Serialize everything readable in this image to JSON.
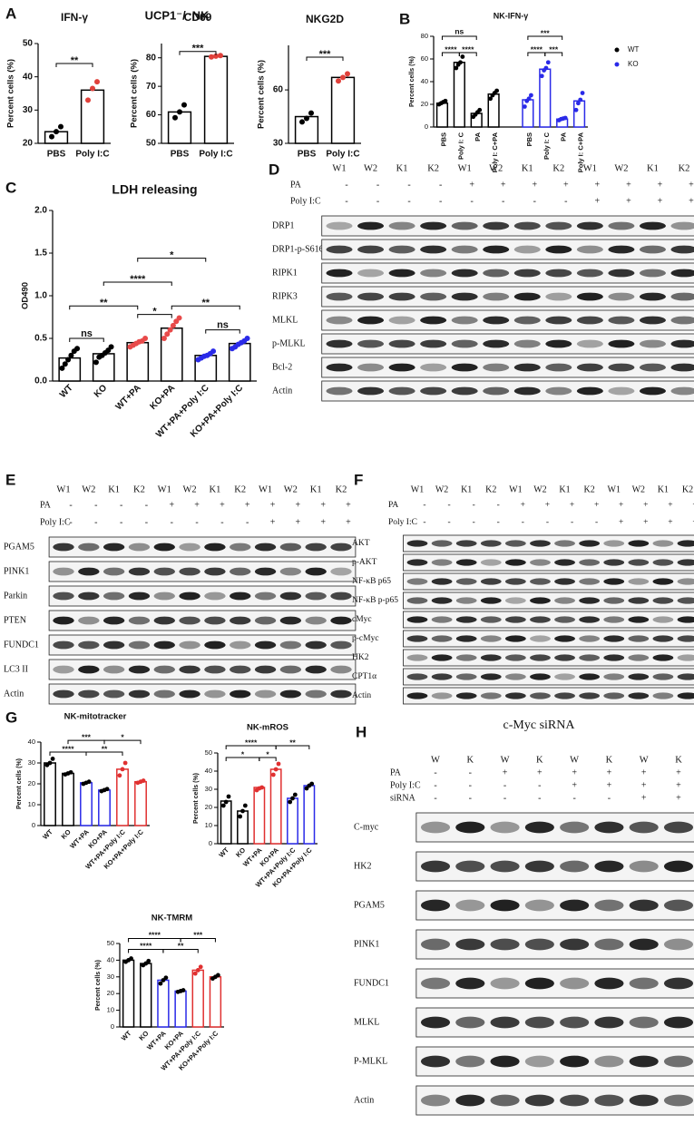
{
  "panels": {
    "labels": [
      "A",
      "B",
      "C",
      "D",
      "E",
      "F",
      "G",
      "H"
    ],
    "A_title": "UCP1⁻/⁻NK"
  },
  "chart_data": [
    {
      "type": "bar",
      "title": "IFN-γ",
      "y_label": "Percent cells (%)",
      "categories": [
        "PBS",
        "Poly I:C"
      ],
      "values": [
        23.5,
        36
      ],
      "points": [
        [
          22,
          23.5,
          25
        ],
        [
          33,
          36.5,
          38.5
        ]
      ],
      "colors": [
        "#000000",
        "#000000"
      ],
      "point_colors": [
        "#000000",
        "#e0403a"
      ],
      "ylim": [
        20,
        50
      ],
      "yticks": [
        20,
        30,
        40,
        50
      ],
      "significance": [
        "**"
      ]
    },
    {
      "type": "bar",
      "title": "CD69",
      "y_label": "Percent cells (%)",
      "categories": [
        "PBS",
        "Poly I:C"
      ],
      "values": [
        61,
        80.5
      ],
      "points": [
        [
          59,
          61,
          63.5
        ],
        [
          80.3,
          80.6,
          80.8
        ]
      ],
      "colors": [
        "#000000",
        "#000000"
      ],
      "point_colors": [
        "#000000",
        "#e0403a"
      ],
      "ylim": [
        50,
        85
      ],
      "yticks": [
        50,
        60,
        70,
        80
      ],
      "significance": [
        "***"
      ]
    },
    {
      "type": "bar",
      "title": "NKG2D",
      "y_label": "Percent cells (%)",
      "categories": [
        "PBS",
        "Poly I:C"
      ],
      "values": [
        45,
        67
      ],
      "points": [
        [
          42,
          44,
          47
        ],
        [
          65,
          67,
          69
        ]
      ],
      "colors": [
        "#000000",
        "#000000"
      ],
      "point_colors": [
        "#000000",
        "#e0403a"
      ],
      "ylim": [
        30,
        85
      ],
      "yticks": [
        30,
        60
      ],
      "significance": [
        "***"
      ]
    },
    {
      "type": "bar",
      "title": "NK-IFN-γ",
      "y_label": "Percent cells (%)",
      "categories": [
        "PBS",
        "Poly I: C",
        "PA",
        "Poly I: C+PA"
      ],
      "series": [
        {
          "name": "WT",
          "color": "#000000",
          "values": [
            21,
            57,
            12,
            29
          ],
          "points": [
            [
              20,
              21,
              22,
              23
            ],
            [
              52,
              55,
              57,
              62
            ],
            [
              9,
              11,
              13,
              15
            ],
            [
              25,
              28,
              30,
              32
            ]
          ]
        },
        {
          "name": "KO",
          "color": "#2a2ae8",
          "values": [
            24,
            51,
            7,
            23
          ],
          "points": [
            [
              18,
              23,
              25,
              28
            ],
            [
              45,
              50,
              52,
              57
            ],
            [
              6,
              7,
              7.5,
              8
            ],
            [
              15,
              21,
              24,
              30
            ]
          ]
        }
      ],
      "ylim": [
        0,
        80
      ],
      "yticks": [
        0,
        20,
        40,
        60,
        80
      ],
      "legend": "right",
      "significance": [
        "ns",
        "****",
        "****",
        "***",
        "****",
        "***"
      ]
    },
    {
      "type": "bar",
      "title": "LDH releasing",
      "y_label": "OD490",
      "categories": [
        "WT",
        "KO",
        "WT+PA",
        "KO+PA",
        "WT+PA+Poly I:C",
        "KO+PA+Poly I:C"
      ],
      "values": [
        0.27,
        0.32,
        0.45,
        0.62,
        0.3,
        0.44
      ],
      "points": [
        [
          0.15,
          0.2,
          0.25,
          0.3,
          0.35,
          0.38
        ],
        [
          0.22,
          0.28,
          0.3,
          0.33,
          0.36,
          0.4
        ],
        [
          0.4,
          0.42,
          0.44,
          0.46,
          0.47,
          0.5
        ],
        [
          0.5,
          0.55,
          0.6,
          0.65,
          0.7,
          0.74
        ],
        [
          0.25,
          0.27,
          0.29,
          0.3,
          0.32,
          0.35
        ],
        [
          0.38,
          0.4,
          0.43,
          0.45,
          0.47,
          0.5
        ]
      ],
      "colors": [
        "#000000",
        "#000000",
        "#000000",
        "#000000",
        "#000000",
        "#000000"
      ],
      "point_colors": [
        "#000000",
        "#000000",
        "#e84a4a",
        "#e84a4a",
        "#2a2ae8",
        "#2a2ae8"
      ],
      "ylim": [
        0,
        2
      ],
      "yticks": [
        {
          "value": 0,
          "label": "0.0"
        },
        {
          "value": 0.5,
          "label": "0.5"
        },
        {
          "value": 1,
          "label": "1.0"
        },
        {
          "value": 1.5,
          "label": "1.5"
        },
        {
          "value": 2,
          "label": "2.0"
        }
      ],
      "significance": [
        "ns",
        "**",
        "*",
        "****",
        "*",
        "**",
        "ns"
      ]
    },
    {
      "type": "bar",
      "title": "NK-mitotracker",
      "y_label": "Percent cells (%)",
      "categories": [
        "WT",
        "KO",
        "WT+PA",
        "KO+PA",
        "WT+PA+Poly I:C",
        "KO+PA+Poly I:C"
      ],
      "values": [
        30,
        25,
        20.5,
        17,
        27,
        21
      ],
      "points": [
        [
          29,
          30,
          32
        ],
        [
          24.5,
          25,
          25.5
        ],
        [
          20,
          20.5,
          21
        ],
        [
          16.5,
          17,
          17.5
        ],
        [
          24,
          27,
          30
        ],
        [
          20.5,
          21,
          21.5
        ]
      ],
      "colors": [
        "#000000",
        "#000000",
        "#2a2ae8",
        "#2a2ae8",
        "#e03030",
        "#e03030"
      ],
      "point_colors": [
        "#000000",
        "#000000",
        "#000000",
        "#000000",
        "#e03030",
        "#e03030"
      ],
      "ylim": [
        0,
        40
      ],
      "yticks": [
        0,
        10,
        20,
        30,
        40
      ],
      "significance": [
        "***",
        "*",
        "****",
        "**"
      ]
    },
    {
      "type": "bar",
      "title": "NK-mROS",
      "y_label": "Percent cells (%)",
      "categories": [
        "WT",
        "KO",
        "WT+PA",
        "KO+PA",
        "WT+PA+Poly I:C",
        "KO+PA+Poly I:C"
      ],
      "values": [
        23.5,
        18,
        31,
        41,
        25,
        32
      ],
      "points": [
        [
          21,
          23,
          26
        ],
        [
          15,
          18,
          21
        ],
        [
          29.5,
          30.5,
          31
        ],
        [
          38,
          41,
          44
        ],
        [
          23,
          25,
          27
        ],
        [
          30.5,
          32,
          33
        ]
      ],
      "colors": [
        "#000000",
        "#000000",
        "#e03030",
        "#e03030",
        "#2a2ae8",
        "#2a2ae8"
      ],
      "point_colors": [
        "#000000",
        "#000000",
        "#e03030",
        "#e03030",
        "#000000",
        "#000000"
      ],
      "ylim": [
        0,
        50
      ],
      "yticks": [
        0,
        10,
        20,
        30,
        40,
        50
      ],
      "significance": [
        "****",
        "**",
        "*",
        "*"
      ]
    },
    {
      "type": "bar",
      "title": "NK-TMRM",
      "y_label": "Percent cells (%)",
      "categories": [
        "WT",
        "KO",
        "WT+PA",
        "KO+PA",
        "WT+PA+Poly I:C",
        "KO+PA+Poly I:C"
      ],
      "values": [
        40,
        38,
        28,
        21.5,
        34,
        30
      ],
      "points": [
        [
          39,
          40,
          41
        ],
        [
          37,
          38,
          39.5
        ],
        [
          26,
          28,
          29.5
        ],
        [
          21,
          21.5,
          22
        ],
        [
          32,
          34,
          36
        ],
        [
          29,
          30,
          31
        ]
      ],
      "colors": [
        "#000000",
        "#000000",
        "#2a2ae8",
        "#2a2ae8",
        "#e03030",
        "#e03030"
      ],
      "point_colors": [
        "#000000",
        "#000000",
        "#000000",
        "#000000",
        "#e03030",
        "#000000"
      ],
      "ylim": [
        0,
        50
      ],
      "yticks": [
        0,
        10,
        20,
        30,
        40,
        50
      ],
      "significance": [
        "****",
        "***",
        "****",
        "**"
      ]
    }
  ],
  "blots": [
    {
      "lanes": [
        "W1",
        "W2",
        "K1",
        "K2",
        "W1",
        "W2",
        "K1",
        "K2",
        "W1",
        "W2",
        "K1",
        "K2"
      ],
      "rows": [
        {
          "name": "PA",
          "signs": [
            "-",
            "-",
            "-",
            "-",
            "+",
            "+",
            "+",
            "+",
            "+",
            "+",
            "+",
            "+"
          ]
        },
        {
          "name": "Poly I:C",
          "signs": [
            "-",
            "-",
            "-",
            "-",
            "-",
            "-",
            "-",
            "-",
            "+",
            "+",
            "+",
            "+"
          ]
        }
      ],
      "bands": [
        "DRP1",
        "DRP1-p-S616",
        "RIPK1",
        "RIPK3",
        "MLKL",
        "p-MLKL",
        "Bcl-2",
        "Actin"
      ]
    },
    {
      "lanes": [
        "W1",
        "W2",
        "K1",
        "K2",
        "W1",
        "W2",
        "K1",
        "K2",
        "W1",
        "W2",
        "K1",
        "K2"
      ],
      "rows": [
        {
          "name": "PA",
          "signs": [
            "-",
            "-",
            "-",
            "-",
            "+",
            "+",
            "+",
            "+",
            "+",
            "+",
            "+",
            "+"
          ]
        },
        {
          "name": "Poly I:C",
          "signs": [
            "-",
            "-",
            "-",
            "-",
            "-",
            "-",
            "-",
            "-",
            "+",
            "+",
            "+",
            "+"
          ]
        }
      ],
      "bands": [
        "PGAM5",
        "PINK1",
        "Parkin",
        "PTEN",
        "FUNDC1",
        "LC3 II",
        "Actin"
      ]
    },
    {
      "lanes": [
        "W1",
        "W2",
        "K1",
        "K2",
        "W1",
        "W2",
        "K1",
        "K2",
        "W1",
        "W2",
        "K1",
        "K2"
      ],
      "rows": [
        {
          "name": "PA",
          "signs": [
            "-",
            "-",
            "-",
            "-",
            "+",
            "+",
            "+",
            "+",
            "+",
            "+",
            "+",
            "+"
          ]
        },
        {
          "name": "Poly I:C",
          "signs": [
            "-",
            "-",
            "-",
            "-",
            "-",
            "-",
            "-",
            "-",
            "+",
            "+",
            "+",
            "+"
          ]
        }
      ],
      "bands": [
        "AKT",
        "p-AKT",
        "NF-κB p65",
        "NF-κB p-p65",
        "cMyc",
        "p-cMyc",
        "HK2",
        "CPT1α",
        "Actin"
      ]
    },
    {
      "title": "c-Myc siRNA",
      "lanes": [
        "W",
        "K",
        "W",
        "K",
        "W",
        "K",
        "W",
        "K"
      ],
      "rows": [
        {
          "name": "PA",
          "signs": [
            "-",
            "-",
            "+",
            "+",
            "+",
            "+",
            "+",
            "+"
          ]
        },
        {
          "name": "Poly I:C",
          "signs": [
            "-",
            "-",
            "-",
            "-",
            "+",
            "+",
            "+",
            "+"
          ]
        },
        {
          "name": "siRNA",
          "signs": [
            "-",
            "-",
            "-",
            "-",
            "-",
            "-",
            "+",
            "+"
          ]
        }
      ],
      "bands": [
        "C-myc",
        "HK2",
        "PGAM5",
        "PINK1",
        "FUNDC1",
        "MLKL",
        "P-MLKL",
        "Actin"
      ]
    }
  ]
}
